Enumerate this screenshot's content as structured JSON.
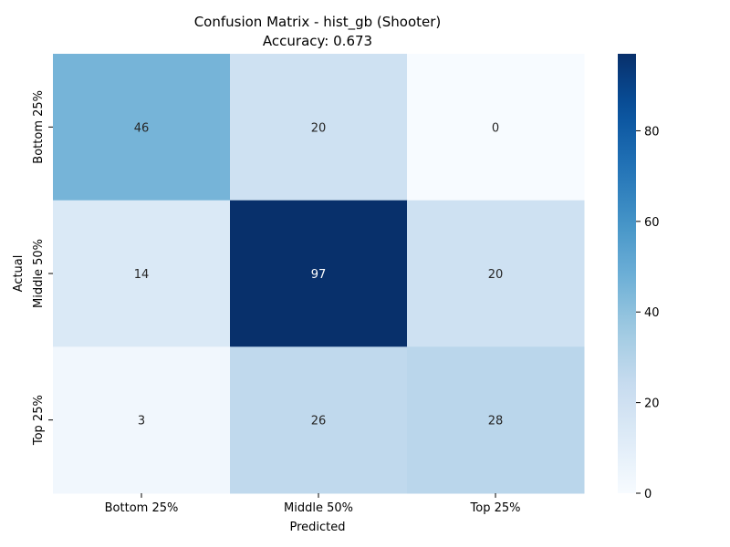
{
  "chart_data": {
    "type": "heatmap",
    "title": "Confusion Matrix - hist_gb (Shooter)",
    "subtitle": "Accuracy: 0.673",
    "xlabel": "Predicted",
    "ylabel": "Actual",
    "x_categories": [
      "Bottom 25%",
      "Middle 50%",
      "Top 25%"
    ],
    "y_categories": [
      "Bottom 25%",
      "Middle 50%",
      "Top 25%"
    ],
    "values": [
      [
        46,
        20,
        0
      ],
      [
        14,
        97,
        20
      ],
      [
        3,
        26,
        28
      ]
    ],
    "colorbar": {
      "min": 0,
      "max": 97,
      "ticks": [
        0,
        20,
        40,
        60,
        80
      ],
      "colormap": "Blues"
    },
    "grid": false
  }
}
